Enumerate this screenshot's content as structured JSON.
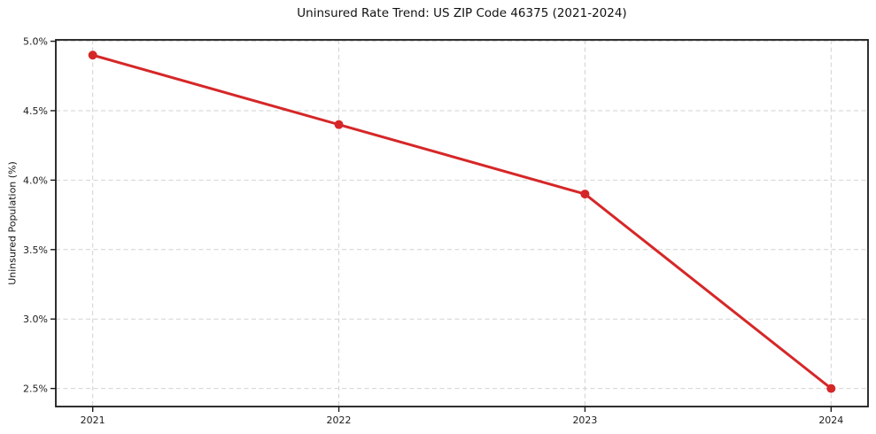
{
  "chart_data": {
    "type": "line",
    "title": "Uninsured Rate Trend: US ZIP Code 46375 (2021-2024)",
    "xlabel": "",
    "ylabel": "Uninsured Population (%)",
    "x": [
      2021,
      2022,
      2023,
      2024
    ],
    "series": [
      {
        "name": "Uninsured rate",
        "values": [
          4.9,
          4.4,
          3.9,
          2.5
        ]
      }
    ],
    "x_ticks": [
      2021,
      2022,
      2023,
      2024
    ],
    "x_tick_labels": [
      "2021",
      "2022",
      "2023",
      "2024"
    ],
    "y_ticks": [
      2.5,
      3.0,
      3.5,
      4.0,
      4.5,
      5.0
    ],
    "y_tick_labels": [
      "2.5%",
      "3.0%",
      "3.5%",
      "4.0%",
      "4.5%",
      "5.0%"
    ],
    "xlim": [
      2020.85,
      2024.15
    ],
    "ylim": [
      2.37,
      5.01
    ],
    "grid": true,
    "legend": "none",
    "line_color": "#d62728",
    "marker": "circle",
    "grid_color": "#d2d2d2",
    "spine_color": "#1a1a1a",
    "background_color": "#ffffff"
  }
}
